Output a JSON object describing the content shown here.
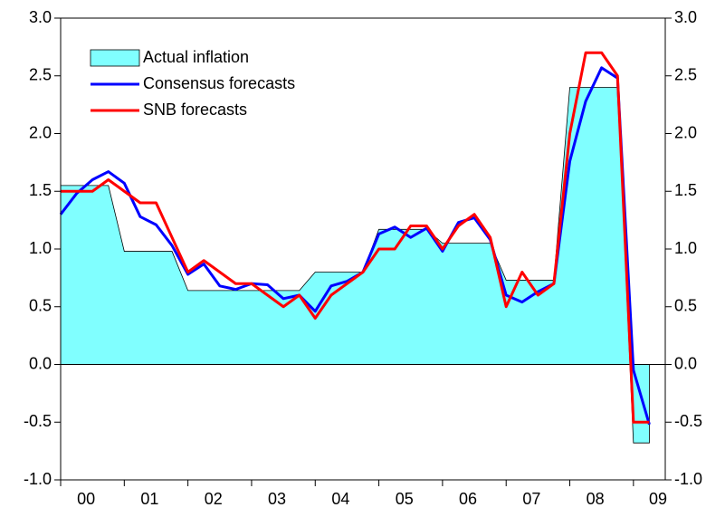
{
  "chart_data": {
    "type": "line",
    "x": [
      2000,
      2000.25,
      2000.5,
      2000.75,
      2001,
      2001.25,
      2001.5,
      2001.75,
      2002,
      2002.25,
      2002.5,
      2002.75,
      2003,
      2003.25,
      2003.5,
      2003.75,
      2004,
      2004.25,
      2004.5,
      2004.75,
      2005,
      2005.25,
      2005.5,
      2005.75,
      2006,
      2006.25,
      2006.5,
      2006.75,
      2007,
      2007.25,
      2007.5,
      2007.75,
      2008,
      2008.25,
      2008.5,
      2008.75,
      2009,
      2009.25
    ],
    "series": [
      {
        "name": "Actual inflation",
        "kind": "area",
        "color": "#80ffff",
        "values": [
          1.55,
          1.55,
          1.55,
          1.55,
          0.98,
          0.98,
          0.98,
          0.98,
          0.64,
          0.64,
          0.64,
          0.64,
          0.64,
          0.64,
          0.64,
          0.64,
          0.8,
          0.8,
          0.8,
          0.8,
          1.17,
          1.17,
          1.17,
          1.17,
          1.05,
          1.05,
          1.05,
          1.05,
          0.73,
          0.73,
          0.73,
          0.73,
          2.4,
          2.4,
          2.4,
          2.4,
          -0.68,
          -0.68
        ]
      },
      {
        "name": "Consensus forecasts",
        "kind": "line",
        "color": "#0000ff",
        "values": [
          1.3,
          1.48,
          1.6,
          1.67,
          1.57,
          1.28,
          1.21,
          1.03,
          0.78,
          0.87,
          0.68,
          0.65,
          0.7,
          0.69,
          0.57,
          0.6,
          0.46,
          0.68,
          0.72,
          0.8,
          1.13,
          1.19,
          1.1,
          1.18,
          0.98,
          1.23,
          1.27,
          1.08,
          0.6,
          0.54,
          0.63,
          0.7,
          1.76,
          2.28,
          2.57,
          2.48,
          -0.05,
          -0.52
        ]
      },
      {
        "name": "SNB forecasts",
        "kind": "line",
        "color": "#ff0000",
        "values": [
          1.5,
          1.5,
          1.5,
          1.6,
          1.5,
          1.4,
          1.4,
          1.1,
          0.8,
          0.9,
          0.8,
          0.7,
          0.7,
          0.6,
          0.5,
          0.6,
          0.4,
          0.6,
          0.7,
          0.8,
          1.0,
          1.0,
          1.2,
          1.2,
          1.0,
          1.2,
          1.3,
          1.1,
          0.5,
          0.8,
          0.6,
          0.7,
          2.0,
          2.7,
          2.7,
          2.5,
          -0.5,
          -0.5
        ]
      }
    ],
    "xlim": [
      2000,
      2009.5
    ],
    "xticks": [
      {
        "value": 2000,
        "label": "00"
      },
      {
        "value": 2001,
        "label": "01"
      },
      {
        "value": 2002,
        "label": "02"
      },
      {
        "value": 2003,
        "label": "03"
      },
      {
        "value": 2004,
        "label": "04"
      },
      {
        "value": 2005,
        "label": "05"
      },
      {
        "value": 2006,
        "label": "06"
      },
      {
        "value": 2007,
        "label": "07"
      },
      {
        "value": 2008,
        "label": "08"
      },
      {
        "value": 2009,
        "label": "09"
      }
    ],
    "ylim": [
      -1,
      3
    ],
    "yticks": [
      {
        "value": -1,
        "label": "-1.0"
      },
      {
        "value": -0.5,
        "label": "-0.5"
      },
      {
        "value": 0,
        "label": "0.0"
      },
      {
        "value": 0.5,
        "label": "0.5"
      },
      {
        "value": 1,
        "label": "1.0"
      },
      {
        "value": 1.5,
        "label": "1.5"
      },
      {
        "value": 2,
        "label": "2.0"
      },
      {
        "value": 2.5,
        "label": "2.5"
      },
      {
        "value": 3,
        "label": "3.0"
      }
    ],
    "y2lim": [
      -1,
      3
    ],
    "y2ticks": [
      {
        "value": -1,
        "label": "-1.0"
      },
      {
        "value": -0.5,
        "label": "-0.5"
      },
      {
        "value": 0,
        "label": "0.0"
      },
      {
        "value": 0.5,
        "label": "0.5"
      },
      {
        "value": 1,
        "label": "1.0"
      },
      {
        "value": 1.5,
        "label": "1.5"
      },
      {
        "value": 2,
        "label": "2.0"
      },
      {
        "value": 2.5,
        "label": "2.5"
      },
      {
        "value": 3,
        "label": "3.0"
      }
    ],
    "legend": "upper left"
  }
}
